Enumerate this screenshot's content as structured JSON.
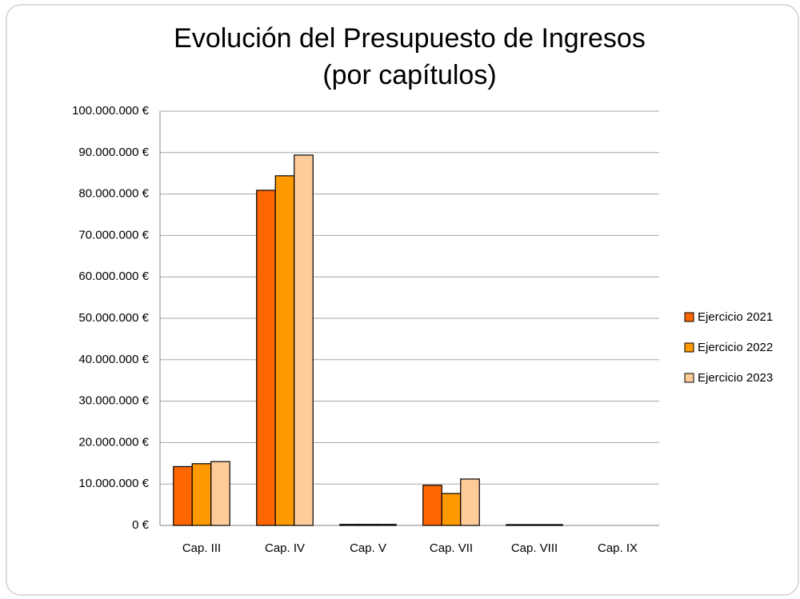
{
  "chart_data": {
    "type": "bar",
    "title": [
      "Evolución del Presupuesto de Ingresos",
      "(por capítulos)"
    ],
    "categories": [
      "Cap. III",
      "Cap. IV",
      "Cap. V",
      "Cap. VII",
      "Cap. VIII",
      "Cap. IX"
    ],
    "series": [
      {
        "name": "Ejercicio 2021",
        "color": "#ff6600",
        "values": [
          14200000,
          80900000,
          250000,
          9700000,
          200000,
          0
        ]
      },
      {
        "name": "Ejercicio 2022",
        "color": "#ff9900",
        "values": [
          14900000,
          84400000,
          250000,
          7700000,
          200000,
          0
        ]
      },
      {
        "name": "Ejercicio 2023",
        "color": "#ffcc99",
        "values": [
          15400000,
          89400000,
          250000,
          11200000,
          200000,
          0
        ]
      }
    ],
    "ylim": [
      0,
      100000000
    ],
    "yticks": [
      {
        "value": 0,
        "label": "0 €"
      },
      {
        "value": 10000000,
        "label": "10.000.000 €"
      },
      {
        "value": 20000000,
        "label": "20.000.000 €"
      },
      {
        "value": 30000000,
        "label": "30.000.000 €"
      },
      {
        "value": 40000000,
        "label": "40.000.000 €"
      },
      {
        "value": 50000000,
        "label": "50.000.000 €"
      },
      {
        "value": 60000000,
        "label": "60.000.000 €"
      },
      {
        "value": 70000000,
        "label": "70.000.000 €"
      },
      {
        "value": 80000000,
        "label": "80.000.000 €"
      },
      {
        "value": 90000000,
        "label": "90.000.000 €"
      },
      {
        "value": 100000000,
        "label": "100.000.000 €"
      }
    ],
    "grid": true,
    "legend": "right"
  }
}
